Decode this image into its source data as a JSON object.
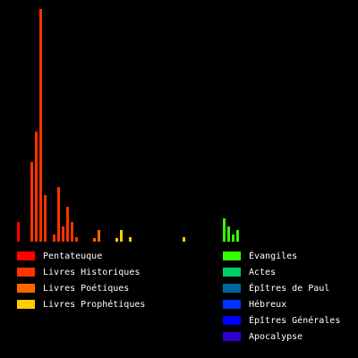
{
  "chart_data": {
    "type": "bar",
    "xlim": [
      0,
      76
    ],
    "ylim": [
      0,
      260
    ],
    "series": [
      {
        "name": "Pentateuque",
        "color": "#ff0000",
        "x": [
          0
        ],
        "values": [
          22
        ]
      },
      {
        "name": "Livres Historiques",
        "color": "#ff3300",
        "x": [
          3,
          4,
          5,
          6,
          8,
          9,
          10,
          11,
          12,
          13
        ],
        "values": [
          89,
          123,
          260,
          52,
          8,
          61,
          17,
          39,
          22,
          5
        ]
      },
      {
        "name": "Livres Poétiques",
        "color": "#ff6600",
        "x": [
          17,
          18
        ],
        "values": [
          4,
          13
        ]
      },
      {
        "name": "Livres Prophétiques",
        "color": "#ffcc00",
        "x": [
          22,
          23,
          25,
          37
        ],
        "values": [
          4,
          13,
          5,
          5
        ]
      },
      {
        "name": "Évangiles",
        "color": "#33ff00",
        "x": [
          46,
          47,
          48,
          49
        ],
        "values": [
          26,
          17,
          8,
          13
        ]
      },
      {
        "name": "Actes",
        "color": "#00cc66",
        "x": [],
        "values": []
      },
      {
        "name": "Épîtres de Paul",
        "color": "#006699",
        "x": [],
        "values": []
      },
      {
        "name": "Hébreux",
        "color": "#0033ff",
        "x": [],
        "values": []
      },
      {
        "name": "Épîtres Générales",
        "color": "#0000ff",
        "x": [],
        "values": []
      },
      {
        "name": "Apocalypse",
        "color": "#3300cc",
        "x": [],
        "values": []
      }
    ]
  }
}
